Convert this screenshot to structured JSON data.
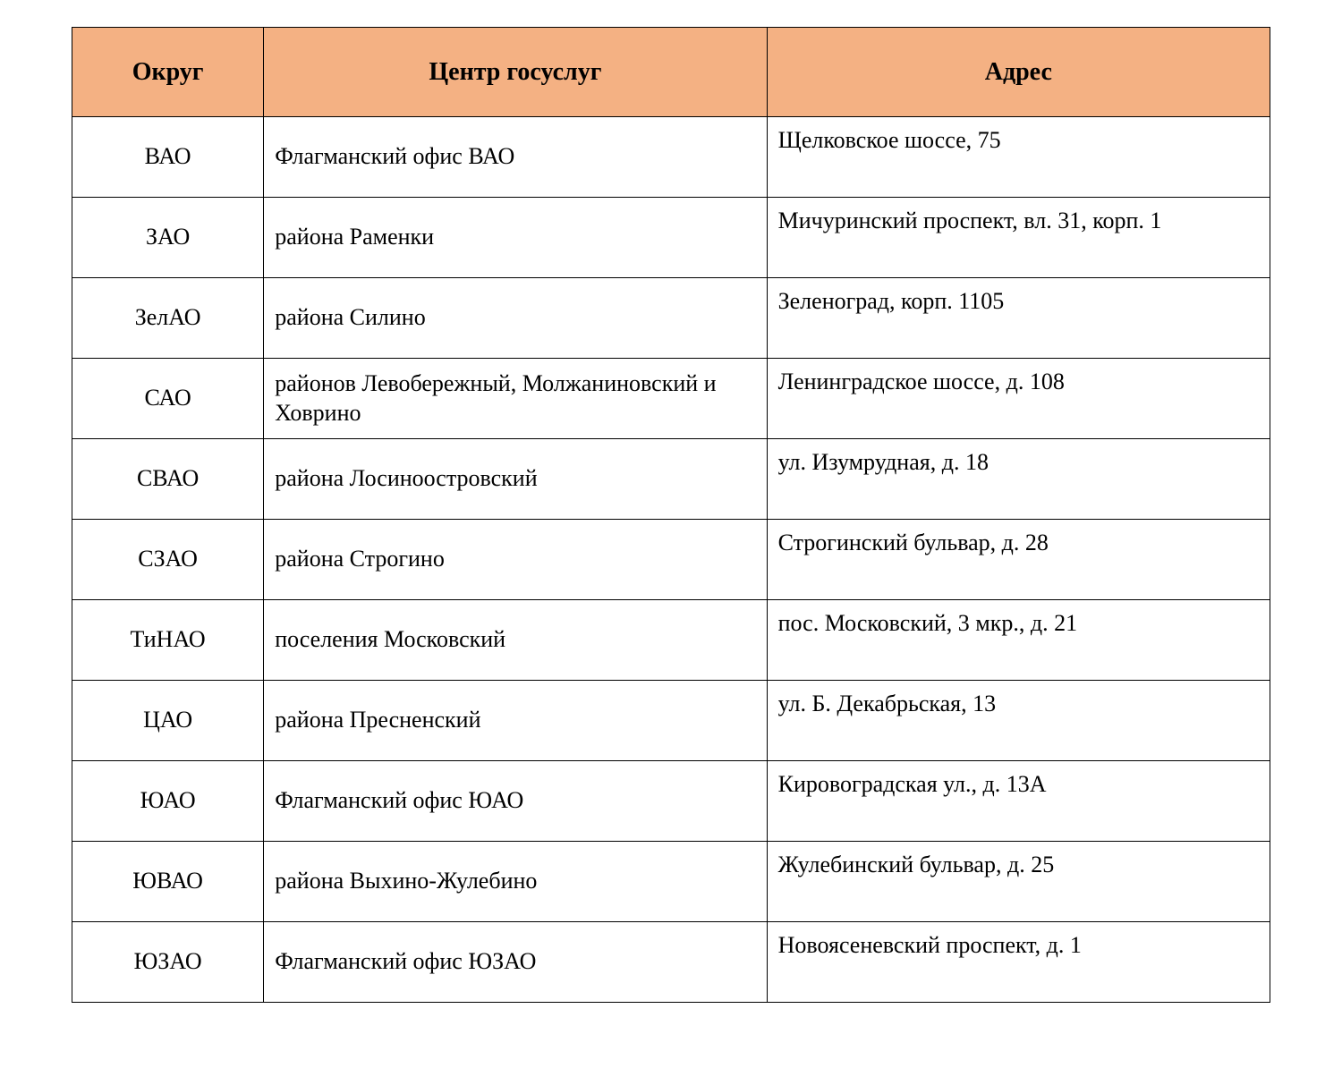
{
  "table": {
    "header_bg": "#f4b183",
    "border_color": "#000000",
    "text_color": "#000000",
    "font_family": "Times New Roman",
    "header_fontsize": 28,
    "cell_fontsize": 26,
    "columns": [
      {
        "key": "district",
        "label": "Округ"
      },
      {
        "key": "center",
        "label": "Центр госуслуг"
      },
      {
        "key": "address",
        "label": "Адрес"
      }
    ],
    "rows": [
      {
        "district": "ВАО",
        "center": "Флагманский офис ВАО",
        "address": "Щелковское шоссе, 75"
      },
      {
        "district": "ЗАО",
        "center": "района Раменки",
        "address": "Мичуринский проспект, вл. 31, корп. 1"
      },
      {
        "district": "ЗелАО",
        "center": "района Силино",
        "address": "Зеленоград, корп. 1105"
      },
      {
        "district": "САО",
        "center": "районов Левобережный, Молжаниновский и Ховрино",
        "address": "Ленинградское шоссе, д. 108"
      },
      {
        "district": "СВАО",
        "center": "района Лосиноостровский",
        "address": "ул. Изумрудная, д. 18"
      },
      {
        "district": "СЗАО",
        "center": "района Строгино",
        "address": "Строгинский бульвар, д. 28"
      },
      {
        "district": "ТиНАО",
        "center": "поселения Московский",
        "address": "пос. Московский, 3 мкр., д. 21"
      },
      {
        "district": "ЦАО",
        "center": "района Пресненский",
        "address": "ул. Б. Декабрьская, 13"
      },
      {
        "district": "ЮАО",
        "center": "Флагманский офис ЮАО",
        "address": "Кировоградская ул., д. 13А"
      },
      {
        "district": "ЮВАО",
        "center": "района Выхино-Жулебино",
        "address": "Жулебинский бульвар, д. 25"
      },
      {
        "district": "ЮЗАО",
        "center": "Флагманский офис ЮЗАО",
        "address": "Новоясеневский проспект, д. 1"
      }
    ]
  }
}
